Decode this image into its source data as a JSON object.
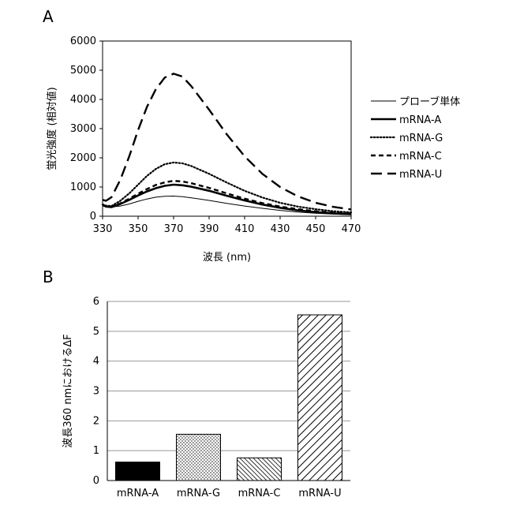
{
  "chart_data": [
    {
      "panel": "A",
      "type": "line",
      "title": "",
      "xlabel": "波長 (nm)",
      "ylabel": "蛍光強度 (相対値)",
      "xlim": [
        330,
        470
      ],
      "ylim": [
        0,
        6000
      ],
      "x_ticks": [
        330,
        350,
        370,
        390,
        410,
        430,
        450,
        470
      ],
      "y_ticks": [
        0,
        1000,
        2000,
        3000,
        4000,
        5000,
        6000
      ],
      "grid": false,
      "legend": "right",
      "x": [
        330,
        332,
        335,
        340,
        345,
        350,
        355,
        360,
        365,
        370,
        375,
        380,
        390,
        400,
        410,
        420,
        430,
        440,
        450,
        460,
        470
      ],
      "series": [
        {
          "name": "プローブ単体",
          "values": [
            420,
            360,
            320,
            350,
            420,
            510,
            590,
            650,
            680,
            690,
            670,
            630,
            540,
            440,
            350,
            270,
            200,
            140,
            100,
            70,
            50
          ]
        },
        {
          "name": "mRNA-A",
          "values": [
            380,
            330,
            310,
            420,
            560,
            710,
            850,
            960,
            1040,
            1080,
            1060,
            1010,
            870,
            700,
            540,
            400,
            290,
            200,
            140,
            100,
            70
          ]
        },
        {
          "name": "mRNA-G",
          "values": [
            400,
            360,
            350,
            530,
            780,
            1080,
            1380,
            1620,
            1780,
            1840,
            1810,
            1720,
            1450,
            1150,
            870,
            640,
            460,
            330,
            240,
            170,
            130
          ]
        },
        {
          "name": "mRNA-C",
          "values": [
            390,
            340,
            320,
            440,
            600,
            770,
            930,
            1070,
            1160,
            1210,
            1190,
            1130,
            970,
            780,
            600,
            450,
            330,
            240,
            170,
            120,
            90
          ]
        },
        {
          "name": "mRNA-U",
          "values": [
            560,
            530,
            650,
            1250,
            2050,
            2950,
            3750,
            4350,
            4750,
            4880,
            4780,
            4450,
            3650,
            2800,
            2050,
            1450,
            1000,
            680,
            460,
            320,
            230
          ]
        }
      ]
    },
    {
      "panel": "B",
      "type": "bar",
      "title": "",
      "xlabel": "",
      "ylabel": "波長360 nmにおけるΔF",
      "ylim": [
        0,
        6
      ],
      "y_ticks": [
        0,
        1,
        2,
        3,
        4,
        5,
        6
      ],
      "grid": true,
      "categories": [
        "mRNA-A",
        "mRNA-G",
        "mRNA-C",
        "mRNA-U"
      ],
      "values": [
        0.62,
        1.55,
        0.76,
        5.55
      ],
      "fills": [
        "solid-black",
        "dotted",
        "dense-diagonal",
        "wide-diagonal"
      ]
    }
  ],
  "panel_labels": {
    "a": "A",
    "b": "B"
  }
}
